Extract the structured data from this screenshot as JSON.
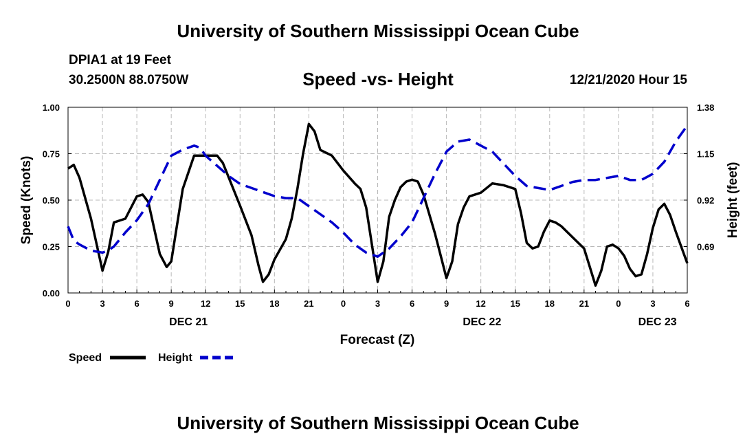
{
  "header": {
    "title": "University of Southern Mississippi Ocean Cube",
    "station": "DPIA1 at 19 Feet",
    "coords": "30.2500N 88.0750W",
    "date_hour": "12/21/2020 Hour 15"
  },
  "footer": {
    "title": "University of Southern Mississippi Ocean Cube"
  },
  "chart_data": {
    "type": "line",
    "title": "Speed -vs- Height",
    "xlabel": "Forecast (Z)",
    "ylabel": "Speed (Knots)",
    "y2label": "Height (feet)",
    "x_hours_range": [
      0,
      54
    ],
    "ylim": [
      0,
      1.0
    ],
    "y2lim": [
      0.46,
      1.38
    ],
    "y_ticks": [
      "0.00",
      "0.25",
      "0.50",
      "0.75",
      "1.00"
    ],
    "y_tick_values": [
      0,
      0.25,
      0.5,
      0.75,
      1.0
    ],
    "y2_ticks": [
      "0.69",
      "0.92",
      "1.15",
      "1.38"
    ],
    "y2_tick_values": [
      0.69,
      0.92,
      1.15,
      1.38
    ],
    "x_ticks": [
      "0",
      "3",
      "6",
      "9",
      "12",
      "15",
      "18",
      "21",
      "0",
      "3",
      "6",
      "9",
      "12",
      "15",
      "18",
      "21",
      "0",
      "3",
      "6"
    ],
    "x_tick_hours": [
      0,
      3,
      6,
      9,
      12,
      15,
      18,
      21,
      24,
      27,
      30,
      33,
      36,
      39,
      42,
      45,
      48,
      51,
      54
    ],
    "day_labels": [
      {
        "label": "DEC 21",
        "hour": 10.5
      },
      {
        "label": "DEC 22",
        "hour": 36.1
      },
      {
        "label": "DEC 23",
        "hour": 51.4
      }
    ],
    "grid": true,
    "series": [
      {
        "name": "Speed",
        "axis": "left",
        "color": "#000000",
        "style": "solid",
        "points": [
          [
            0,
            0.67
          ],
          [
            0.5,
            0.69
          ],
          [
            1,
            0.62
          ],
          [
            2,
            0.4
          ],
          [
            3,
            0.12
          ],
          [
            3.5,
            0.22
          ],
          [
            4,
            0.38
          ],
          [
            5,
            0.4
          ],
          [
            6,
            0.52
          ],
          [
            6.5,
            0.53
          ],
          [
            7,
            0.49
          ],
          [
            8,
            0.21
          ],
          [
            8.6,
            0.14
          ],
          [
            9,
            0.17
          ],
          [
            10,
            0.56
          ],
          [
            11,
            0.74
          ],
          [
            12,
            0.74
          ],
          [
            13,
            0.74
          ],
          [
            13.5,
            0.7
          ],
          [
            15,
            0.47
          ],
          [
            16,
            0.31
          ],
          [
            16.6,
            0.15
          ],
          [
            17,
            0.06
          ],
          [
            17.5,
            0.1
          ],
          [
            18,
            0.18
          ],
          [
            19,
            0.29
          ],
          [
            19.5,
            0.4
          ],
          [
            20,
            0.56
          ],
          [
            20.5,
            0.75
          ],
          [
            21,
            0.91
          ],
          [
            21.5,
            0.87
          ],
          [
            22,
            0.77
          ],
          [
            23,
            0.74
          ],
          [
            24,
            0.66
          ],
          [
            25,
            0.59
          ],
          [
            25.5,
            0.56
          ],
          [
            26,
            0.46
          ],
          [
            27,
            0.06
          ],
          [
            27.5,
            0.17
          ],
          [
            28,
            0.41
          ],
          [
            28.5,
            0.5
          ],
          [
            29,
            0.57
          ],
          [
            29.5,
            0.6
          ],
          [
            30,
            0.61
          ],
          [
            30.5,
            0.6
          ],
          [
            31,
            0.53
          ],
          [
            32,
            0.32
          ],
          [
            32.5,
            0.2
          ],
          [
            33,
            0.08
          ],
          [
            33.5,
            0.17
          ],
          [
            34,
            0.37
          ],
          [
            34.5,
            0.46
          ],
          [
            35,
            0.52
          ],
          [
            36,
            0.54
          ],
          [
            37,
            0.59
          ],
          [
            38,
            0.58
          ],
          [
            39,
            0.56
          ],
          [
            39.5,
            0.43
          ],
          [
            40,
            0.27
          ],
          [
            40.5,
            0.24
          ],
          [
            41,
            0.25
          ],
          [
            41.5,
            0.33
          ],
          [
            42,
            0.39
          ],
          [
            42.5,
            0.38
          ],
          [
            43,
            0.36
          ],
          [
            44,
            0.3
          ],
          [
            45,
            0.24
          ],
          [
            45.5,
            0.14
          ],
          [
            46,
            0.04
          ],
          [
            46.5,
            0.12
          ],
          [
            47,
            0.25
          ],
          [
            47.5,
            0.26
          ],
          [
            48,
            0.24
          ],
          [
            48.5,
            0.2
          ],
          [
            49,
            0.13
          ],
          [
            49.5,
            0.09
          ],
          [
            50,
            0.1
          ],
          [
            50.5,
            0.21
          ],
          [
            51,
            0.35
          ],
          [
            51.5,
            0.45
          ],
          [
            52,
            0.48
          ],
          [
            52.5,
            0.42
          ],
          [
            53,
            0.33
          ],
          [
            54,
            0.16
          ]
        ]
      },
      {
        "name": "Height",
        "axis": "right",
        "color": "#0000cc",
        "style": "dashed",
        "points": [
          [
            0,
            0.79
          ],
          [
            0.5,
            0.72
          ],
          [
            1,
            0.7
          ],
          [
            2,
            0.67
          ],
          [
            3,
            0.66
          ],
          [
            3.5,
            0.67
          ],
          [
            4,
            0.69
          ],
          [
            5,
            0.76
          ],
          [
            6,
            0.82
          ],
          [
            7,
            0.9
          ],
          [
            8,
            1.02
          ],
          [
            9,
            1.14
          ],
          [
            10,
            1.17
          ],
          [
            11,
            1.19
          ],
          [
            11.5,
            1.18
          ],
          [
            12,
            1.14
          ],
          [
            13,
            1.09
          ],
          [
            14,
            1.04
          ],
          [
            15,
            1.0
          ],
          [
            16,
            0.98
          ],
          [
            17,
            0.96
          ],
          [
            18,
            0.94
          ],
          [
            19,
            0.93
          ],
          [
            20,
            0.93
          ],
          [
            21,
            0.89
          ],
          [
            22,
            0.85
          ],
          [
            23,
            0.81
          ],
          [
            24,
            0.76
          ],
          [
            25,
            0.7
          ],
          [
            26,
            0.66
          ],
          [
            27,
            0.64
          ],
          [
            28,
            0.68
          ],
          [
            29,
            0.74
          ],
          [
            30,
            0.81
          ],
          [
            31,
            0.93
          ],
          [
            32,
            1.05
          ],
          [
            33,
            1.16
          ],
          [
            34,
            1.21
          ],
          [
            35,
            1.22
          ],
          [
            36,
            1.19
          ],
          [
            37,
            1.16
          ],
          [
            38,
            1.1
          ],
          [
            39,
            1.04
          ],
          [
            40,
            0.99
          ],
          [
            41,
            0.98
          ],
          [
            42,
            0.97
          ],
          [
            43,
            0.99
          ],
          [
            44,
            1.01
          ],
          [
            45,
            1.02
          ],
          [
            46,
            1.02
          ],
          [
            47,
            1.03
          ],
          [
            48,
            1.04
          ],
          [
            49,
            1.02
          ],
          [
            50,
            1.02
          ],
          [
            51,
            1.05
          ],
          [
            52,
            1.11
          ],
          [
            53,
            1.21
          ],
          [
            54,
            1.29
          ]
        ]
      }
    ]
  }
}
